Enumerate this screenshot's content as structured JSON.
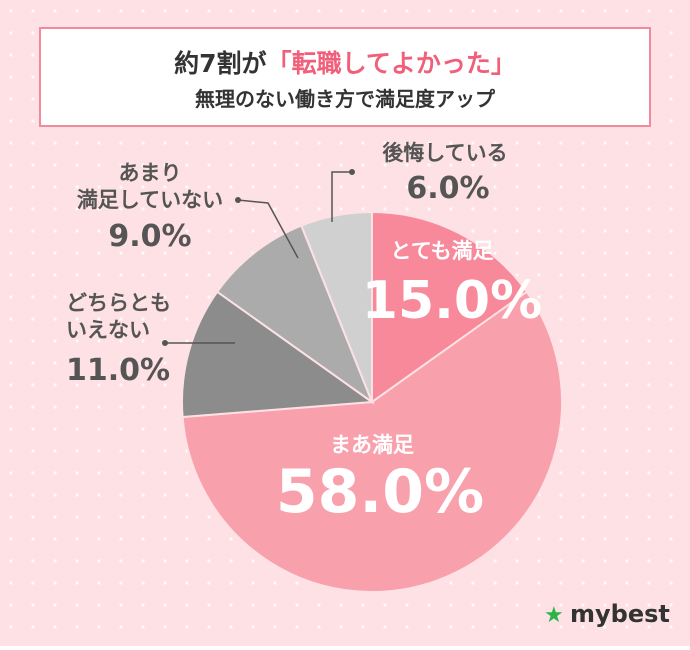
{
  "chart_data": {
    "type": "pie",
    "title": "約7割が",
    "title_highlight": "「転職してよかった」",
    "subtitle": "無理のない働き方で満足度アップ",
    "categories": [
      "とても満足",
      "まあ満足",
      "どちらとも\nいえない",
      "あまり\n満足していない",
      "後悔している"
    ],
    "values": [
      15.0,
      58.0,
      11.0,
      9.0,
      6.0
    ],
    "value_labels": [
      "15.0%",
      "58.0%",
      "11.0%",
      "9.0%",
      "6.0%"
    ],
    "colors": [
      "#f7899b",
      "#f8a0ab",
      "#8c8c8c",
      "#ababab",
      "#d0d0d0"
    ],
    "brand": "mybest"
  }
}
